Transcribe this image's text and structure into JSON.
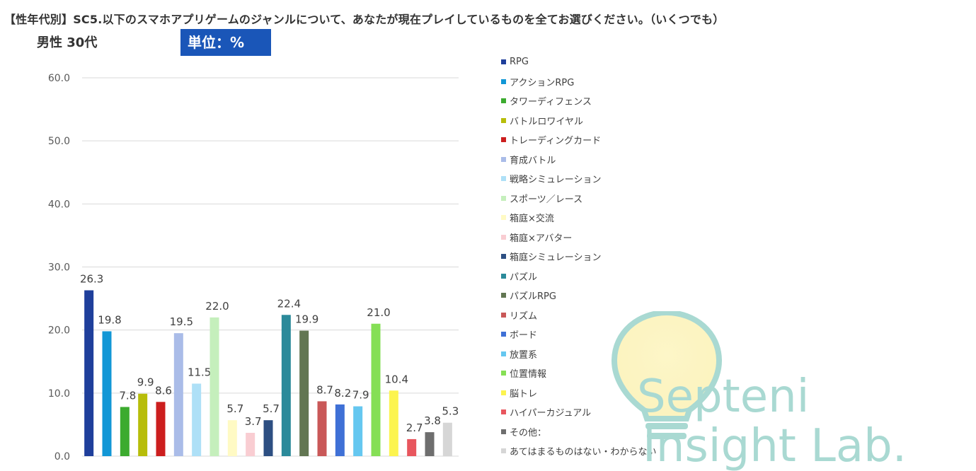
{
  "header": {
    "title": "【性年代別】SC5.以下のスマホアプリゲームのジャンルについて、あなたが現在プレイしているものを全てお選びください。（いくつでも）",
    "segment": "男性  30代",
    "unit": "単位：%"
  },
  "chart_data": {
    "type": "bar",
    "title": "",
    "xlabel": "",
    "ylabel": "",
    "ylim": [
      0,
      60
    ],
    "yticks": [
      "0.0",
      "10.0",
      "20.0",
      "30.0",
      "40.0",
      "50.0",
      "60.0"
    ],
    "grid": true,
    "legend_position": "right",
    "categories": [
      "RPG",
      "アクションRPG",
      "タワーディフェンス",
      "バトルロワイヤル",
      "トレーディングカード",
      "育成バトル",
      "戦略シミュレーション",
      "スポーツ／レース",
      "箱庭×交流",
      "箱庭×アバター",
      "箱庭シミュレーション",
      "パズル",
      "パズルRPG",
      "リズム",
      "ボード",
      "放置系",
      "位置情報",
      "脳トレ",
      "ハイパーカジュアル",
      "その他：",
      "あてはまるものはない・わからない"
    ],
    "values": [
      26.3,
      19.8,
      7.8,
      9.9,
      8.6,
      19.5,
      11.5,
      22.0,
      5.7,
      3.7,
      5.7,
      22.4,
      19.9,
      8.7,
      8.2,
      7.9,
      21.0,
      10.4,
      2.7,
      3.8,
      5.3
    ],
    "value_labels": [
      "26.3",
      "19.8",
      "7.8",
      "9.9",
      "8.6",
      "19.5",
      "11.5",
      "22.0",
      "5.7",
      "3.7",
      "5.7",
      "22.4",
      "19.9",
      "8.7",
      "8.2",
      "7.9",
      "21.0",
      "10.4",
      "2.7",
      "3.8",
      "5.3"
    ],
    "colors": [
      "#1f3f9b",
      "#1297d6",
      "#3cab2f",
      "#b7bd0a",
      "#cc1e1e",
      "#aabce8",
      "#aee0f7",
      "#c5efbc",
      "#fffac4",
      "#f9cdd2",
      "#2d4f82",
      "#2b8a9a",
      "#627652",
      "#c95858",
      "#3f70d6",
      "#65c7f0",
      "#85df55",
      "#fcf44f",
      "#e8565e",
      "#6e6e6e",
      "#d6d6d6"
    ]
  },
  "watermark": {
    "line1": "Septeni",
    "line2": "Insight Lab.",
    "color": "#a9d9d2"
  }
}
